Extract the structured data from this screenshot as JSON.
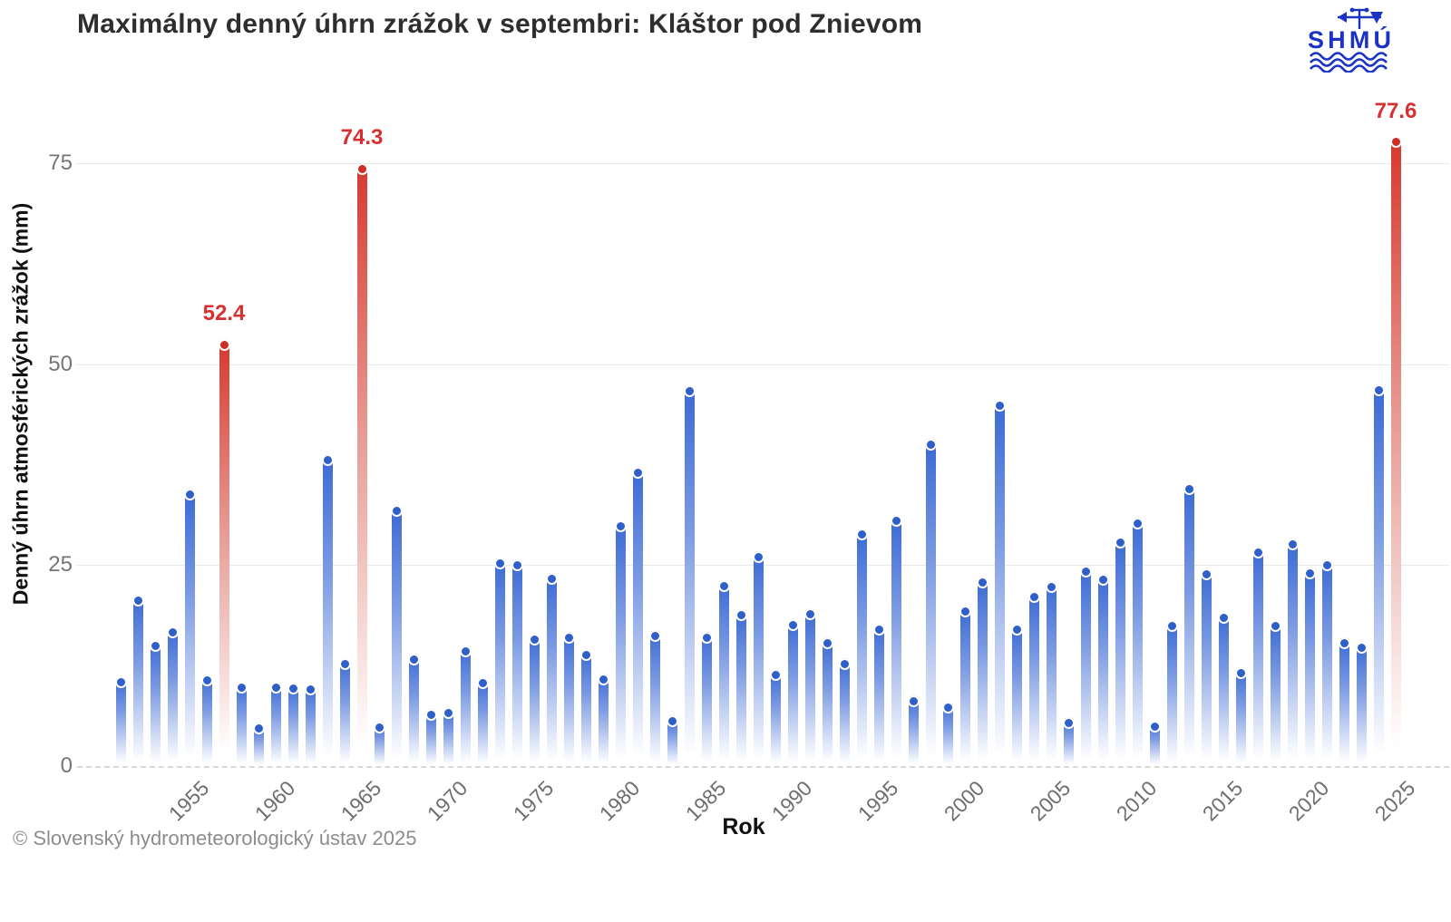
{
  "title": "Maximálny denný úhrn zrážok v septembri: Kláštor pod Znievom",
  "logo": {
    "text": "SHMÚ"
  },
  "footer": "© Slovenský hydrometeorologický ústav 2025",
  "chart_data": {
    "type": "bar",
    "title": "Maximálny denný úhrn zrážok v septembri: Kláštor pod Znievom",
    "xlabel": "Rok",
    "ylabel": "Denný úhrn atmosférických zrážok (mm)",
    "ylim": [
      0,
      80
    ],
    "y_ticks": [
      0,
      25,
      50,
      75
    ],
    "x_ticks": [
      1955,
      1960,
      1965,
      1970,
      1975,
      1980,
      1985,
      1990,
      1995,
      2000,
      2005,
      2010,
      2015,
      2020,
      2025
    ],
    "grid": "horizontal-only",
    "legend": "none",
    "years": [
      1951,
      1952,
      1953,
      1954,
      1955,
      1956,
      1957,
      1958,
      1959,
      1960,
      1961,
      1962,
      1963,
      1964,
      1965,
      1966,
      1967,
      1968,
      1969,
      1970,
      1971,
      1972,
      1973,
      1974,
      1975,
      1976,
      1977,
      1978,
      1979,
      1980,
      1981,
      1982,
      1983,
      1984,
      1985,
      1986,
      1987,
      1988,
      1989,
      1990,
      1991,
      1992,
      1993,
      1994,
      1995,
      1996,
      1997,
      1998,
      1999,
      2000,
      2001,
      2002,
      2003,
      2004,
      2005,
      2006,
      2007,
      2008,
      2009,
      2010,
      2011,
      2012,
      2013,
      2014,
      2015,
      2016,
      2017,
      2018,
      2019,
      2020,
      2021,
      2022,
      2023,
      2024,
      2025
    ],
    "values": [
      10.4,
      20.6,
      14.9,
      16.6,
      33.8,
      10.7,
      52.4,
      9.7,
      4.7,
      9.7,
      9.6,
      9.5,
      38.1,
      12.7,
      74.3,
      4.8,
      31.8,
      13.3,
      6.4,
      6.6,
      14.3,
      10.3,
      25.2,
      25.0,
      15.7,
      23.3,
      16.0,
      13.8,
      10.8,
      29.8,
      36.5,
      16.2,
      5.6,
      46.6,
      16.0,
      22.4,
      18.8,
      26.0,
      11.3,
      17.5,
      18.9,
      15.3,
      12.7,
      28.8,
      17.0,
      30.5,
      8.1,
      40.0,
      7.3,
      19.2,
      22.8,
      44.8,
      17.0,
      21.0,
      22.3,
      5.4,
      24.2,
      23.2,
      27.8,
      30.2,
      4.9,
      17.4,
      34.4,
      23.8,
      18.4,
      11.6,
      26.6,
      17.4,
      27.6,
      24.0,
      25.0,
      15.3,
      14.7,
      46.8,
      77.6
    ],
    "highlighted_years": [
      1957,
      1965,
      2025
    ],
    "annotations": [
      {
        "year": 1957,
        "label": "52.4"
      },
      {
        "year": 1965,
        "label": "74.3"
      },
      {
        "year": 2025,
        "label": "77.6"
      }
    ],
    "colors": {
      "bar": "#3a69d4",
      "bar_highlight": "#d6382e",
      "annotation_text": "#d63030",
      "gridline": "#e8e8e8",
      "tick_text": "#757575",
      "logo_blue": "#1a33c4"
    }
  }
}
